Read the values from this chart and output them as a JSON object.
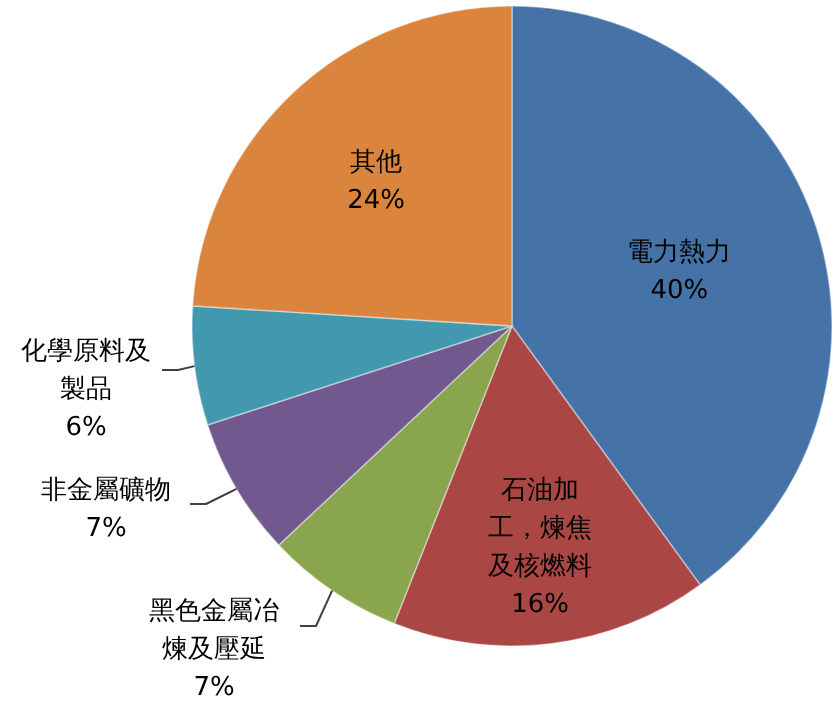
{
  "chart_data": {
    "type": "pie",
    "categories": [
      "電力熱力",
      "石油加工，煉焦及核燃料",
      "黑色金屬冶煉及壓延",
      "非金屬礦物",
      "化學原料及製品",
      "其他"
    ],
    "values": [
      40,
      16,
      7,
      7,
      6,
      24
    ],
    "colors": [
      "#4572a7",
      "#aa4643",
      "#89a54e",
      "#71588f",
      "#4198af",
      "#db843d"
    ],
    "value_labels": [
      "40%",
      "16%",
      "7%",
      "7%",
      "6%",
      "24%"
    ]
  }
}
